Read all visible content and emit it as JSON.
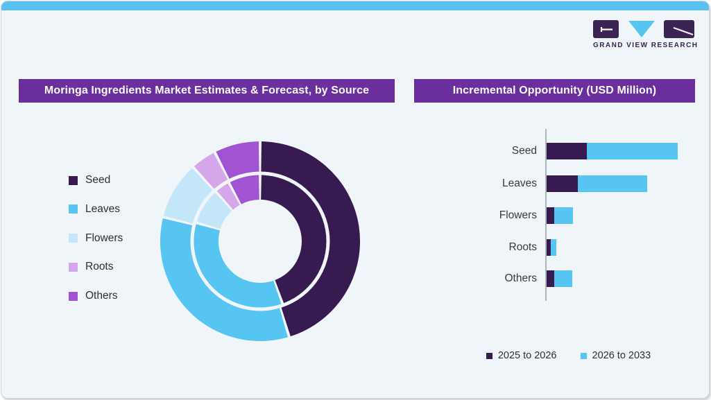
{
  "page": {
    "background_color": "#F0F5F9",
    "top_accent_color": "#58C1EF",
    "banner_color": "#6B2F9D"
  },
  "logo": {
    "text": "GRAND VIEW RESEARCH",
    "dark_color": "#3B2353",
    "blue_color": "#56C5F2"
  },
  "panels": {
    "left_title": "Moringa Ingredients Market Estimates & Forecast, by Source",
    "right_title": "Incremental Opportunity (USD Million)"
  },
  "chart_data": [
    {
      "type": "pie",
      "subtype": "double-ring-donut",
      "title": "Moringa Ingredients Market Estimates & Forecast, by Source",
      "categories": [
        "Seed",
        "Leaves",
        "Flowers",
        "Roots",
        "Others"
      ],
      "colors": [
        "#371B50",
        "#56C5F2",
        "#C3E6F8",
        "#D5A6EA",
        "#A153D1"
      ],
      "rings": [
        {
          "name": "outer_ring",
          "values_pct": [
            45.3,
            33.6,
            9.4,
            4.2,
            7.5
          ]
        },
        {
          "name": "inner_ring",
          "values_pct": [
            44.5,
            35.0,
            8.9,
            3.8,
            7.8
          ]
        }
      ],
      "start_angle_deg": 0,
      "clockwise": true,
      "data_labels_shown": false,
      "legend_position": "left"
    },
    {
      "type": "bar",
      "orientation": "horizontal",
      "title": "Incremental Opportunity (USD Million)",
      "categories": [
        "Seed",
        "Leaves",
        "Flowers",
        "Roots",
        "Others"
      ],
      "series": [
        {
          "name": "2025 to 2026",
          "color": "#371B50",
          "values": [
            58,
            45,
            11,
            6,
            11
          ]
        },
        {
          "name": "2026 to 2033",
          "color": "#56C5F2",
          "values": [
            131,
            100,
            27,
            8,
            26
          ]
        }
      ],
      "stacked": true,
      "value_axis_ticks_shown": false,
      "value_axis_range_estimate": [
        0,
        200
      ],
      "grid": false,
      "legend_position": "bottom"
    }
  ],
  "bar_legend": [
    {
      "label": "2025 to 2026",
      "color": "#371B50"
    },
    {
      "label": "2026 to 2033",
      "color": "#56C5F2"
    }
  ]
}
